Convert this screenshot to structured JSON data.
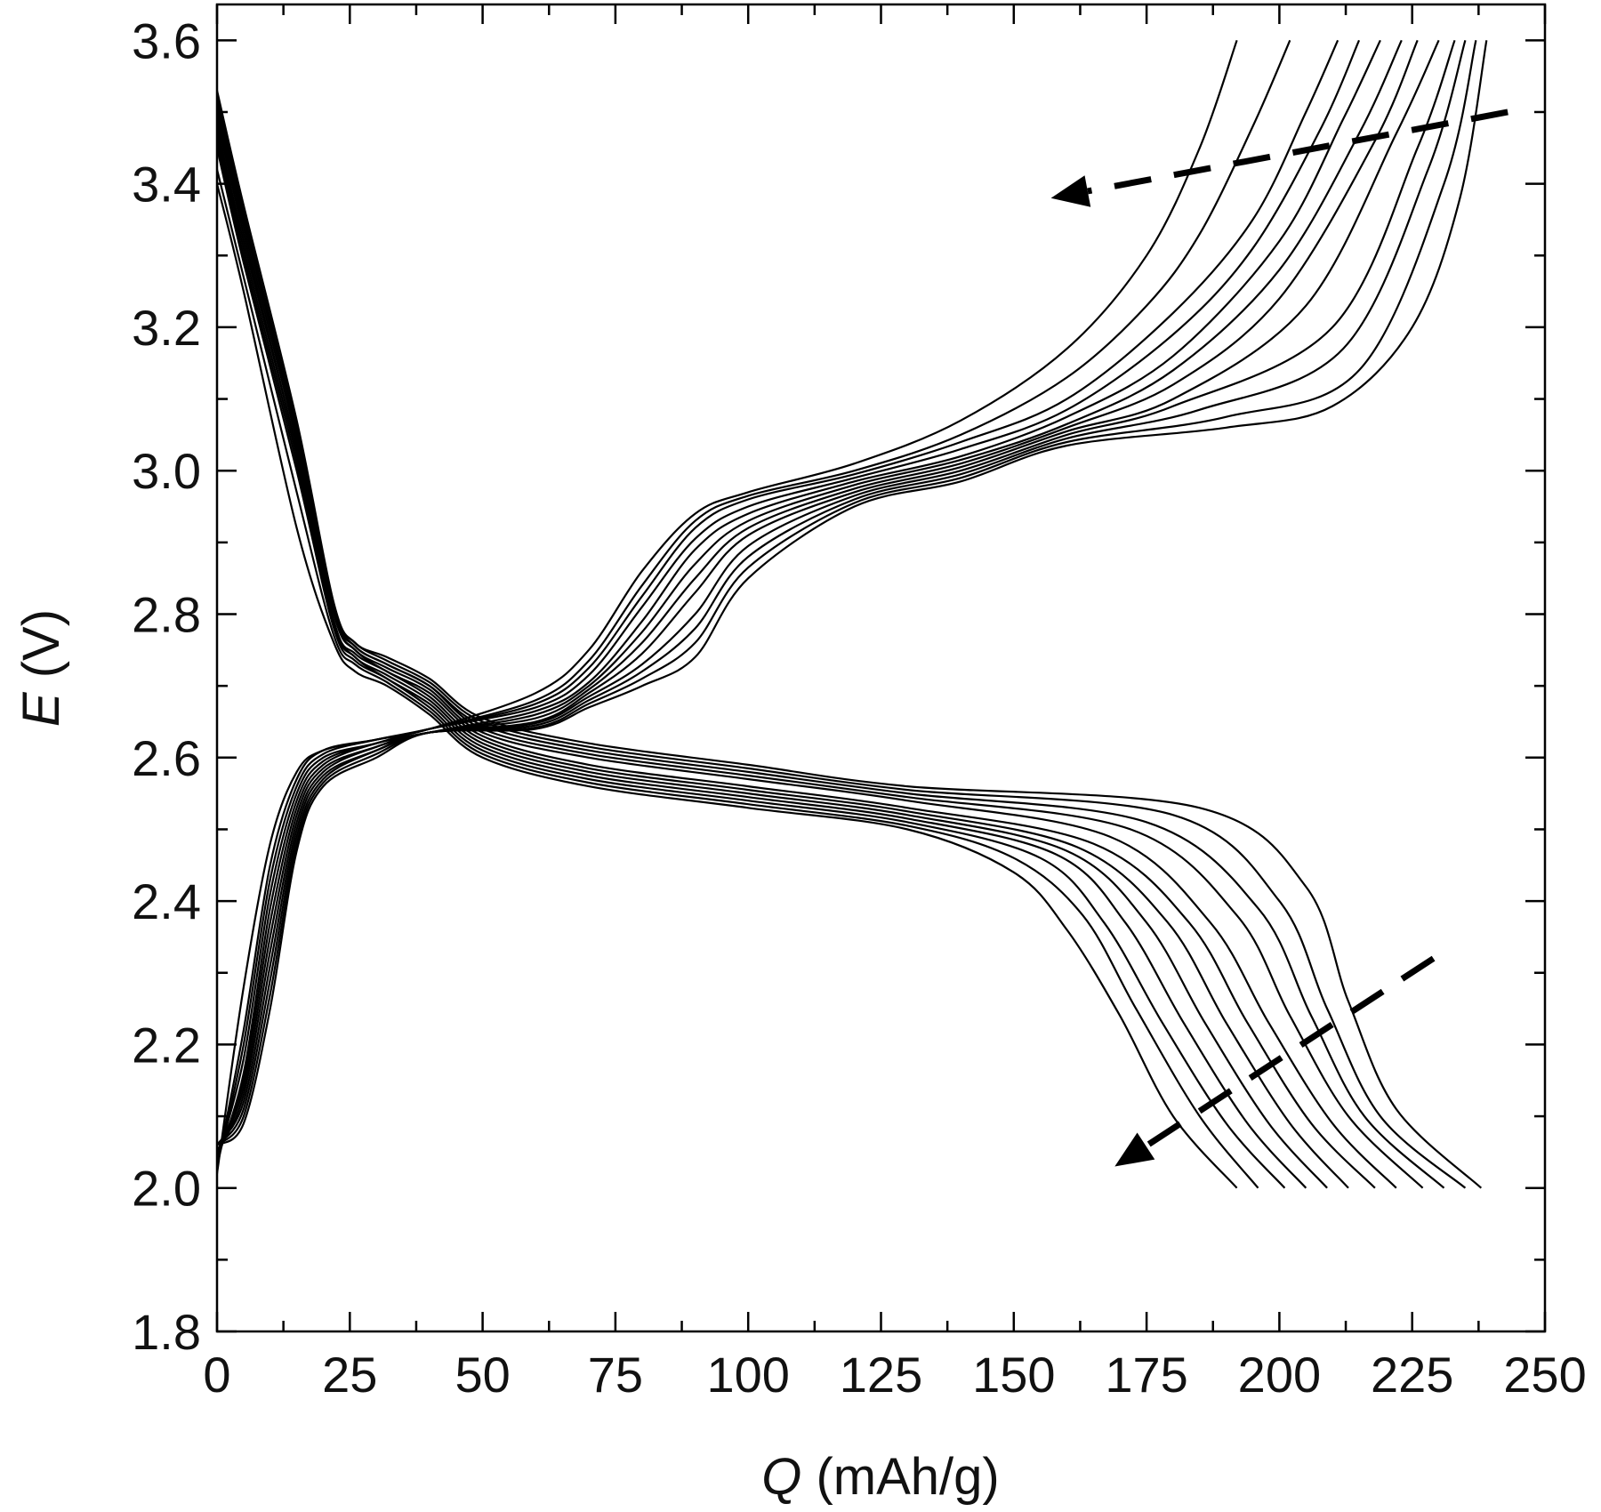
{
  "chart_data": {
    "type": "line",
    "title": "",
    "xlabel_var": "Q",
    "xlabel_unit": " (mAh/g)",
    "ylabel_var": "E",
    "ylabel_unit": " (V)",
    "xlim": [
      0,
      250
    ],
    "ylim": [
      1.8,
      3.65
    ],
    "xticks": [
      0,
      25,
      50,
      75,
      100,
      125,
      150,
      175,
      200,
      225,
      250
    ],
    "yticks": [
      1.8,
      2.0,
      2.2,
      2.4,
      2.6,
      2.8,
      3.0,
      3.2,
      3.4,
      3.6
    ],
    "xtick_labels": [
      "0",
      "25",
      "50",
      "75",
      "100",
      "125",
      "150",
      "175",
      "200",
      "225",
      "250"
    ],
    "ytick_labels": [
      "1.8",
      "2.0",
      "2.2",
      "2.4",
      "2.6",
      "2.8",
      "3.0",
      "3.2",
      "3.4",
      "3.6"
    ],
    "grid": false,
    "legend": "none",
    "cycles": 12,
    "series": [
      {
        "group": "charge",
        "x": [
          0,
          5,
          10,
          15,
          20,
          30,
          40,
          60,
          70,
          80,
          90,
          100,
          120,
          140,
          160,
          175,
          185,
          192
        ],
        "y": [
          2.02,
          2.28,
          2.48,
          2.58,
          2.61,
          2.625,
          2.64,
          2.69,
          2.75,
          2.86,
          2.94,
          2.97,
          3.01,
          3.07,
          3.17,
          3.3,
          3.45,
          3.6
        ]
      },
      {
        "group": "charge",
        "x": [
          0,
          5,
          10,
          15,
          20,
          30,
          40,
          60,
          70,
          80,
          90,
          100,
          120,
          140,
          160,
          175,
          185,
          195,
          202
        ],
        "y": [
          2.03,
          2.22,
          2.45,
          2.57,
          2.61,
          2.625,
          2.64,
          2.68,
          2.735,
          2.84,
          2.93,
          2.965,
          3.0,
          3.05,
          3.13,
          3.23,
          3.33,
          3.48,
          3.6
        ]
      },
      {
        "group": "charge",
        "x": [
          0,
          5,
          10,
          15,
          20,
          30,
          40,
          60,
          70,
          80,
          90,
          100,
          120,
          140,
          160,
          180,
          195,
          205,
          211
        ],
        "y": [
          2.03,
          2.2,
          2.43,
          2.56,
          2.605,
          2.625,
          2.64,
          2.675,
          2.725,
          2.825,
          2.92,
          2.96,
          2.995,
          3.04,
          3.1,
          3.22,
          3.35,
          3.5,
          3.6
        ]
      },
      {
        "group": "charge",
        "x": [
          0,
          5,
          10,
          15,
          20,
          30,
          40,
          60,
          70,
          80,
          90,
          100,
          120,
          140,
          160,
          180,
          195,
          208,
          215
        ],
        "y": [
          2.04,
          2.18,
          2.41,
          2.55,
          2.6,
          2.62,
          2.64,
          2.67,
          2.715,
          2.81,
          2.905,
          2.95,
          2.99,
          3.03,
          3.085,
          3.19,
          3.31,
          3.48,
          3.6
        ]
      },
      {
        "group": "charge",
        "x": [
          0,
          5,
          10,
          15,
          20,
          30,
          40,
          60,
          70,
          80,
          90,
          100,
          120,
          140,
          160,
          180,
          200,
          212,
          219
        ],
        "y": [
          2.04,
          2.16,
          2.39,
          2.54,
          2.595,
          2.62,
          2.635,
          2.665,
          2.705,
          2.79,
          2.89,
          2.94,
          2.985,
          3.02,
          3.075,
          3.16,
          3.32,
          3.49,
          3.6
        ]
      },
      {
        "group": "charge",
        "x": [
          0,
          5,
          10,
          15,
          20,
          30,
          40,
          60,
          70,
          80,
          90,
          100,
          120,
          140,
          160,
          180,
          200,
          215,
          223
        ],
        "y": [
          2.05,
          2.15,
          2.37,
          2.53,
          2.59,
          2.62,
          2.635,
          2.66,
          2.7,
          2.775,
          2.87,
          2.93,
          2.98,
          3.015,
          3.065,
          3.14,
          3.28,
          3.47,
          3.6
        ]
      },
      {
        "group": "charge",
        "x": [
          0,
          5,
          10,
          15,
          20,
          30,
          40,
          60,
          70,
          80,
          90,
          100,
          120,
          140,
          160,
          180,
          200,
          218,
          226
        ],
        "y": [
          2.05,
          2.14,
          2.35,
          2.52,
          2.585,
          2.615,
          2.635,
          2.655,
          2.695,
          2.76,
          2.85,
          2.92,
          2.975,
          3.01,
          3.06,
          3.12,
          3.24,
          3.46,
          3.6
        ]
      },
      {
        "group": "charge",
        "x": [
          0,
          5,
          10,
          15,
          20,
          30,
          40,
          60,
          70,
          80,
          90,
          100,
          120,
          140,
          160,
          180,
          205,
          222,
          230
        ],
        "y": [
          2.05,
          2.13,
          2.33,
          2.51,
          2.58,
          2.615,
          2.635,
          2.65,
          2.69,
          2.745,
          2.83,
          2.91,
          2.97,
          3.005,
          3.055,
          3.1,
          3.23,
          3.47,
          3.6
        ]
      },
      {
        "group": "charge",
        "x": [
          0,
          5,
          10,
          15,
          20,
          30,
          40,
          60,
          70,
          80,
          90,
          100,
          120,
          140,
          160,
          180,
          210,
          226,
          233
        ],
        "y": [
          2.06,
          2.12,
          2.31,
          2.5,
          2.575,
          2.61,
          2.635,
          2.648,
          2.685,
          2.73,
          2.8,
          2.895,
          2.965,
          3.0,
          3.05,
          3.09,
          3.2,
          3.45,
          3.6
        ]
      },
      {
        "group": "charge",
        "x": [
          0,
          5,
          10,
          15,
          20,
          30,
          40,
          60,
          70,
          80,
          90,
          100,
          120,
          140,
          160,
          185,
          212,
          228,
          235
        ],
        "y": [
          2.06,
          2.11,
          2.29,
          2.49,
          2.57,
          2.61,
          2.635,
          2.645,
          2.68,
          2.72,
          2.78,
          2.88,
          2.96,
          2.995,
          3.045,
          3.085,
          3.17,
          3.42,
          3.6
        ]
      },
      {
        "group": "charge",
        "x": [
          0,
          5,
          10,
          15,
          20,
          30,
          40,
          60,
          70,
          80,
          90,
          100,
          120,
          140,
          160,
          190,
          215,
          231,
          237
        ],
        "y": [
          2.06,
          2.1,
          2.27,
          2.48,
          2.565,
          2.605,
          2.635,
          2.642,
          2.675,
          2.71,
          2.76,
          2.865,
          2.955,
          2.99,
          3.04,
          3.075,
          3.14,
          3.4,
          3.6
        ]
      },
      {
        "group": "charge",
        "x": [
          0,
          5,
          10,
          15,
          20,
          30,
          40,
          60,
          70,
          80,
          90,
          100,
          120,
          140,
          160,
          190,
          210,
          225,
          234,
          239
        ],
        "y": [
          2.06,
          2.09,
          2.25,
          2.47,
          2.56,
          2.6,
          2.635,
          2.64,
          2.67,
          2.7,
          2.74,
          2.85,
          2.95,
          2.985,
          3.035,
          3.06,
          3.09,
          3.2,
          3.38,
          3.6
        ]
      },
      {
        "group": "discharge",
        "x": [
          0,
          5,
          15,
          22,
          26,
          32,
          40,
          50,
          70,
          100,
          130,
          150,
          160,
          170,
          180,
          192
        ],
        "y": [
          3.4,
          3.25,
          2.92,
          2.76,
          2.72,
          2.7,
          2.66,
          2.6,
          2.56,
          2.53,
          2.5,
          2.44,
          2.36,
          2.24,
          2.1,
          2.0
        ]
      },
      {
        "group": "discharge",
        "x": [
          0,
          5,
          15,
          22,
          26,
          32,
          40,
          50,
          70,
          100,
          130,
          150,
          163,
          173,
          185,
          196
        ],
        "y": [
          3.42,
          3.27,
          2.97,
          2.77,
          2.73,
          2.705,
          2.665,
          2.605,
          2.565,
          2.535,
          2.505,
          2.46,
          2.38,
          2.25,
          2.1,
          2.0
        ]
      },
      {
        "group": "discharge",
        "x": [
          0,
          5,
          15,
          22,
          26,
          32,
          40,
          50,
          70,
          100,
          130,
          155,
          167,
          178,
          190,
          201
        ],
        "y": [
          3.45,
          3.29,
          3.0,
          2.78,
          2.735,
          2.71,
          2.67,
          2.61,
          2.57,
          2.54,
          2.51,
          2.46,
          2.37,
          2.23,
          2.09,
          2.0
        ]
      },
      {
        "group": "discharge",
        "x": [
          0,
          5,
          15,
          22,
          26,
          32,
          40,
          50,
          70,
          100,
          130,
          158,
          171,
          182,
          194,
          205
        ],
        "y": [
          3.46,
          3.3,
          3.01,
          2.785,
          2.74,
          2.71,
          2.675,
          2.615,
          2.575,
          2.545,
          2.515,
          2.465,
          2.37,
          2.23,
          2.09,
          2.0
        ]
      },
      {
        "group": "discharge",
        "x": [
          0,
          5,
          15,
          22,
          26,
          32,
          40,
          50,
          70,
          100,
          130,
          160,
          175,
          186,
          198,
          209
        ],
        "y": [
          3.47,
          3.31,
          3.02,
          2.79,
          2.74,
          2.715,
          2.68,
          2.62,
          2.58,
          2.55,
          2.52,
          2.47,
          2.37,
          2.23,
          2.09,
          2.0
        ]
      },
      {
        "group": "discharge",
        "x": [
          0,
          5,
          15,
          22,
          26,
          32,
          40,
          50,
          70,
          100,
          130,
          162,
          179,
          190,
          202,
          213
        ],
        "y": [
          3.48,
          3.32,
          3.03,
          2.79,
          2.745,
          2.72,
          2.685,
          2.625,
          2.585,
          2.555,
          2.525,
          2.475,
          2.37,
          2.23,
          2.09,
          2.0
        ]
      },
      {
        "group": "discharge",
        "x": [
          0,
          5,
          15,
          22,
          26,
          32,
          40,
          50,
          70,
          100,
          130,
          165,
          183,
          194,
          206,
          218
        ],
        "y": [
          3.49,
          3.33,
          3.03,
          2.8,
          2.75,
          2.72,
          2.69,
          2.63,
          2.59,
          2.56,
          2.53,
          2.48,
          2.37,
          2.23,
          2.09,
          2.0
        ]
      },
      {
        "group": "discharge",
        "x": [
          0,
          5,
          15,
          22,
          26,
          32,
          40,
          50,
          70,
          100,
          130,
          168,
          187,
          198,
          210,
          222
        ],
        "y": [
          3.5,
          3.34,
          3.04,
          2.8,
          2.75,
          2.725,
          2.695,
          2.635,
          2.6,
          2.57,
          2.54,
          2.49,
          2.37,
          2.23,
          2.09,
          2.0
        ]
      },
      {
        "group": "discharge",
        "x": [
          0,
          5,
          15,
          22,
          26,
          32,
          40,
          50,
          70,
          100,
          130,
          172,
          192,
          202,
          213,
          227
        ],
        "y": [
          3.5,
          3.35,
          3.05,
          2.805,
          2.755,
          2.73,
          2.7,
          2.64,
          2.605,
          2.575,
          2.545,
          2.5,
          2.38,
          2.24,
          2.1,
          2.0
        ]
      },
      {
        "group": "discharge",
        "x": [
          0,
          5,
          15,
          22,
          26,
          32,
          40,
          50,
          70,
          100,
          130,
          175,
          196,
          206,
          216,
          231
        ],
        "y": [
          3.51,
          3.35,
          3.05,
          2.81,
          2.755,
          2.73,
          2.7,
          2.645,
          2.61,
          2.58,
          2.55,
          2.51,
          2.39,
          2.24,
          2.1,
          2.0
        ]
      },
      {
        "group": "discharge",
        "x": [
          0,
          5,
          15,
          22,
          26,
          32,
          40,
          50,
          70,
          100,
          130,
          180,
          200,
          209,
          219,
          235
        ],
        "y": [
          3.52,
          3.36,
          3.06,
          2.81,
          2.76,
          2.735,
          2.705,
          2.65,
          2.615,
          2.585,
          2.555,
          2.52,
          2.4,
          2.25,
          2.1,
          2.0
        ]
      },
      {
        "group": "discharge",
        "x": [
          0,
          5,
          15,
          22,
          26,
          32,
          40,
          50,
          70,
          100,
          130,
          185,
          205,
          213,
          222,
          238
        ],
        "y": [
          3.53,
          3.37,
          3.07,
          2.815,
          2.76,
          2.74,
          2.71,
          2.655,
          2.62,
          2.59,
          2.56,
          2.53,
          2.42,
          2.26,
          2.11,
          2.0
        ]
      }
    ],
    "annotations": [
      {
        "type": "dashed-arrow",
        "label": "",
        "from": [
          243,
          3.5
        ],
        "to": [
          157,
          3.38
        ]
      },
      {
        "type": "dashed-arrow",
        "label": "",
        "from": [
          229,
          2.32
        ],
        "to": [
          169,
          2.03
        ]
      }
    ]
  }
}
